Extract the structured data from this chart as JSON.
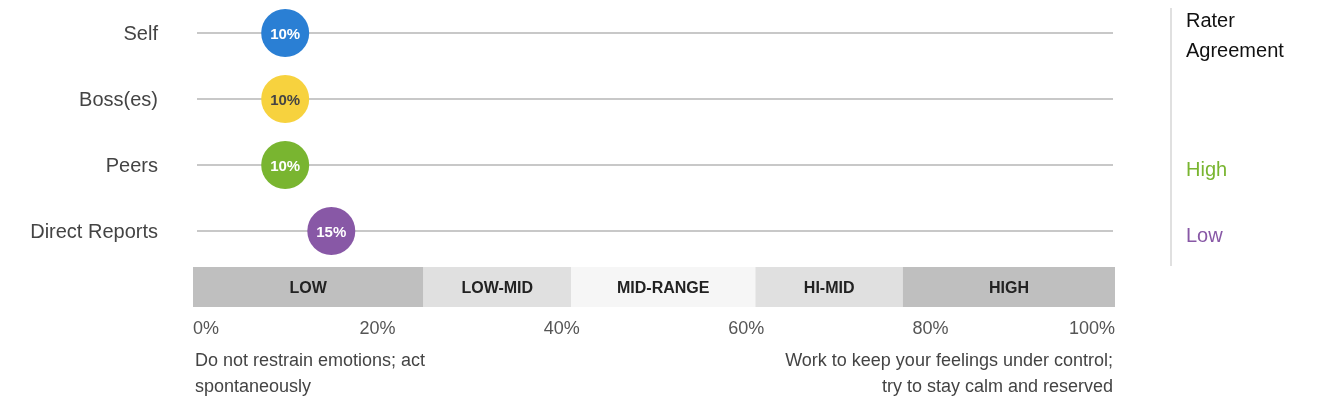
{
  "chart_data": {
    "type": "scatter",
    "orientation": "horizontal",
    "categories": [
      "Self",
      "Boss(es)",
      "Peers",
      "Direct Reports"
    ],
    "values": [
      10,
      10,
      10,
      15
    ],
    "colors": [
      "#2a7fd4",
      "#f7d23e",
      "#79b530",
      "#8858a6"
    ],
    "value_labels": [
      "10%",
      "10%",
      "10%",
      "15%"
    ],
    "xlim": [
      0,
      100
    ],
    "xticks": [
      {
        "value": 0,
        "label": "0%"
      },
      {
        "value": 20,
        "label": "20%"
      },
      {
        "value": 40,
        "label": "40%"
      },
      {
        "value": 60,
        "label": "60%"
      },
      {
        "value": 80,
        "label": "80%"
      },
      {
        "value": 100,
        "label": "100%"
      }
    ],
    "grid": "y",
    "marker": "circle",
    "bands": [
      {
        "axis": "x",
        "from": 0,
        "to": 25,
        "label": "LOW",
        "color": "#bfbfbf"
      },
      {
        "axis": "x",
        "from": 25,
        "to": 41,
        "label": "LOW-MID",
        "color": "#e0e0e0"
      },
      {
        "axis": "x",
        "from": 41,
        "to": 61,
        "label": "MID-RANGE",
        "color": "#f6f6f6"
      },
      {
        "axis": "x",
        "from": 61,
        "to": 77,
        "label": "HI-MID",
        "color": "#e0e0e0"
      },
      {
        "axis": "x",
        "from": 77,
        "to": 100,
        "label": "HIGH",
        "color": "#bfbfbf"
      }
    ],
    "annotations": [
      "Do not restrain emotions; act spontaneously",
      "Work to keep your feelings under control; try to stay calm and reserved",
      "Rater Agreement",
      "High",
      "Low"
    ]
  }
}
